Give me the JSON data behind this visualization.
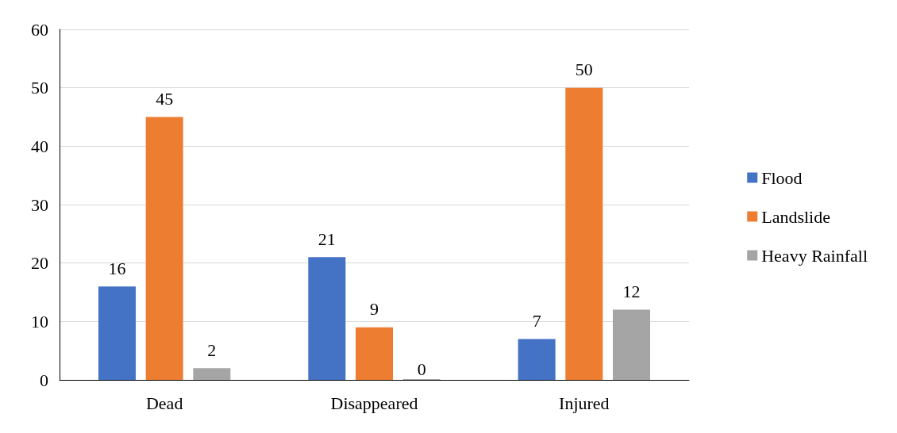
{
  "chart_data": {
    "type": "bar",
    "categories": [
      "Dead",
      "Disappeared",
      "Injured"
    ],
    "series": [
      {
        "name": "Flood",
        "color": "#4472c4",
        "values": [
          16,
          21,
          7
        ]
      },
      {
        "name": "Landslide",
        "color": "#ed7d31",
        "values": [
          45,
          9,
          50
        ]
      },
      {
        "name": "Heavy Rainfall",
        "color": "#a5a5a5",
        "values": [
          2,
          0,
          12
        ]
      }
    ],
    "ylim": [
      0,
      60
    ],
    "yticks": [
      0,
      10,
      20,
      30,
      40,
      50,
      60
    ],
    "grid": "y",
    "legend": "right",
    "data_labels": true
  }
}
